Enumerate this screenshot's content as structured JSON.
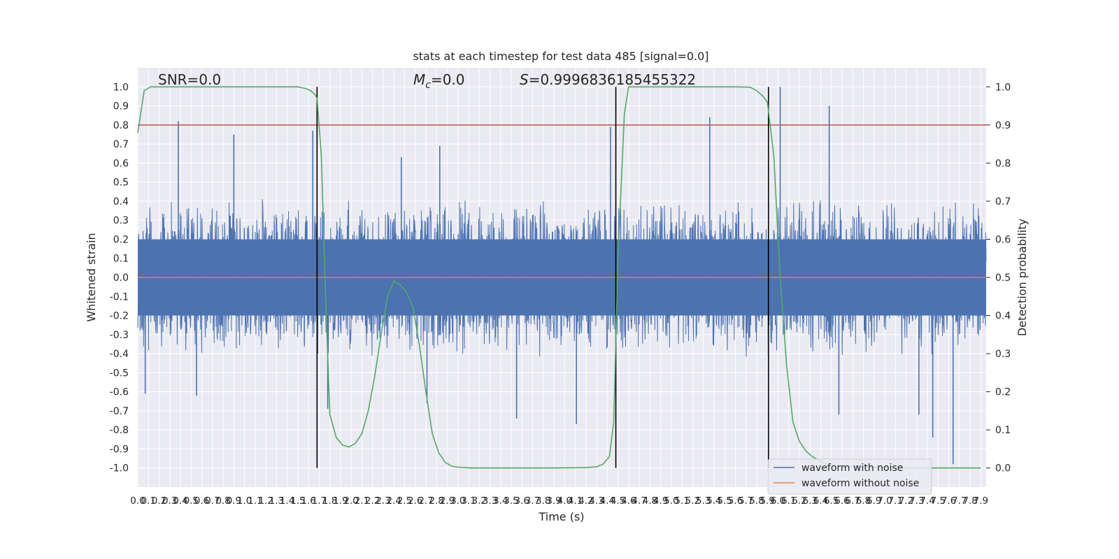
{
  "chart_data": {
    "type": "line",
    "title": "stats at each timestep for test data 485 [signal=0.0]",
    "xlabel": "Time (s)",
    "ylabel_left": "Whitened strain",
    "ylabel_right": "Detection probability",
    "xlim": [
      0.0,
      7.95
    ],
    "ylim_left": [
      -1.1,
      1.1
    ],
    "ylim_right": [
      -0.05,
      1.05
    ],
    "x_ticks": [
      "0.0",
      "0.1",
      "0.2",
      "0.3",
      "0.4",
      "0.5",
      "0.6",
      "0.7",
      "0.8",
      "0.9",
      "1.0",
      "1.1",
      "1.2",
      "1.3",
      "1.4",
      "1.5",
      "1.6",
      "1.7",
      "1.8",
      "1.9",
      "2.0",
      "2.1",
      "2.2",
      "2.3",
      "2.4",
      "2.5",
      "2.6",
      "2.7",
      "2.8",
      "2.9",
      "3.0",
      "3.1",
      "3.2",
      "3.3",
      "3.4",
      "3.5",
      "3.6",
      "3.7",
      "3.8",
      "3.9",
      "4.0",
      "4.1",
      "4.2",
      "4.3",
      "4.4",
      "4.5",
      "4.6",
      "4.7",
      "4.8",
      "4.9",
      "5.0",
      "5.1",
      "5.2",
      "5.3",
      "5.4",
      "5.5",
      "5.6",
      "5.7",
      "5.8",
      "5.9",
      "6.0",
      "6.1",
      "6.2",
      "6.3",
      "6.4",
      "6.5",
      "6.6",
      "6.7",
      "6.8",
      "6.9",
      "7.0",
      "7.1",
      "7.2",
      "7.3",
      "7.4",
      "7.5",
      "7.6",
      "7.7",
      "7.8",
      "7.9"
    ],
    "y_ticks_left": [
      "1.0",
      "0.9",
      "0.8",
      "0.7",
      "0.6",
      "0.5",
      "0.4",
      "0.3",
      "0.2",
      "0.1",
      "0.0",
      "-0.1",
      "-0.2",
      "-0.3",
      "-0.4",
      "-0.5",
      "-0.6",
      "-0.7",
      "-0.8",
      "-0.9",
      "-1.0"
    ],
    "y_ticks_right": [
      "1.0",
      "0.9",
      "0.8",
      "0.7",
      "0.6",
      "0.5",
      "0.4",
      "0.3",
      "0.2",
      "0.1",
      "0.0"
    ],
    "annotations": {
      "snr": "SNR=0.0",
      "mc_symbol": "M",
      "mc_sub": "c",
      "mc_value": "=0.0",
      "s_symbol": "S",
      "s_value": "=0.9996836185455322"
    },
    "threshold": {
      "value": 0.9,
      "axis": "right",
      "color": "#c44e52"
    },
    "vertical_lines": [
      1.68,
      4.48,
      5.91
    ],
    "noise_series": {
      "name": "waveform with noise",
      "color": "#4c72b0",
      "envelope": 0.42,
      "spikes": [
        {
          "x": 0.38,
          "y": 0.82
        },
        {
          "x": 0.9,
          "y": 0.75
        },
        {
          "x": 1.64,
          "y": 0.77
        },
        {
          "x": 2.47,
          "y": 0.63
        },
        {
          "x": 2.83,
          "y": 0.69
        },
        {
          "x": 4.43,
          "y": 0.79
        },
        {
          "x": 5.36,
          "y": 0.84
        },
        {
          "x": 6.02,
          "y": 1.0
        },
        {
          "x": 6.48,
          "y": 0.9
        },
        {
          "x": 0.07,
          "y": -0.61
        },
        {
          "x": 0.55,
          "y": -0.62
        },
        {
          "x": 1.78,
          "y": -0.69
        },
        {
          "x": 2.71,
          "y": -0.66
        },
        {
          "x": 3.55,
          "y": -0.74
        },
        {
          "x": 4.11,
          "y": -0.77
        },
        {
          "x": 6.57,
          "y": -0.72
        },
        {
          "x": 7.32,
          "y": -0.72
        },
        {
          "x": 7.45,
          "y": -0.84
        },
        {
          "x": 7.64,
          "y": -0.98
        }
      ]
    },
    "clean_series": {
      "name": "waveform without noise",
      "color": "#dd8452",
      "value": 0.0
    },
    "probability_series": {
      "name": "detection probability",
      "color": "#55a868",
      "x": [
        0.0,
        0.06,
        0.12,
        0.3,
        0.8,
        1.2,
        1.5,
        1.58,
        1.62,
        1.66,
        1.68,
        1.72,
        1.76,
        1.8,
        1.86,
        1.92,
        1.98,
        2.04,
        2.1,
        2.16,
        2.22,
        2.28,
        2.34,
        2.4,
        2.46,
        2.52,
        2.58,
        2.64,
        2.7,
        2.76,
        2.82,
        2.88,
        2.94,
        3.0,
        3.06,
        3.12,
        3.2,
        3.5,
        3.9,
        4.2,
        4.3,
        4.36,
        4.42,
        4.46,
        4.5,
        4.56,
        4.6,
        4.8,
        5.2,
        5.6,
        5.74,
        5.8,
        5.86,
        5.9,
        5.96,
        6.02,
        6.08,
        6.14,
        6.2,
        6.26,
        6.32,
        6.38,
        6.44,
        6.5,
        6.6,
        6.8,
        7.0,
        7.3,
        7.6,
        7.9
      ],
      "y": [
        0.88,
        0.99,
        1.0,
        1.0,
        1.0,
        1.0,
        1.0,
        0.995,
        0.99,
        0.98,
        0.97,
        0.82,
        0.45,
        0.14,
        0.08,
        0.06,
        0.055,
        0.065,
        0.09,
        0.15,
        0.24,
        0.35,
        0.45,
        0.49,
        0.48,
        0.46,
        0.42,
        0.32,
        0.2,
        0.09,
        0.04,
        0.015,
        0.005,
        0.002,
        0.001,
        0.0,
        0.0,
        0.0,
        0.0,
        0.001,
        0.003,
        0.01,
        0.03,
        0.12,
        0.55,
        0.93,
        1.0,
        1.0,
        1.0,
        1.0,
        0.999,
        0.99,
        0.975,
        0.96,
        0.82,
        0.5,
        0.27,
        0.12,
        0.07,
        0.045,
        0.03,
        0.02,
        0.012,
        0.008,
        0.004,
        0.002,
        0.001,
        0.0,
        0.0,
        0.0
      ]
    },
    "grid": true,
    "legend_position": "bottom-right",
    "background": "#eaeaf2"
  }
}
